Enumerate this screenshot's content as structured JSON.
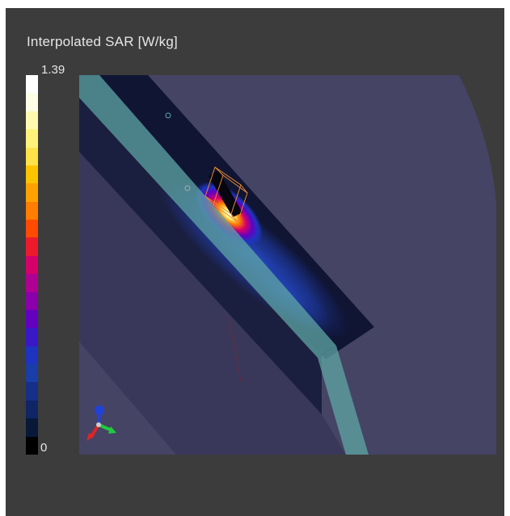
{
  "legend": {
    "title": "Interpolated SAR [W/kg]",
    "max_label": "1.39",
    "min_label": "0",
    "colors_top_to_bottom": [
      "#ffffff",
      "#fffde6",
      "#fffab0",
      "#fff27a",
      "#ffe14a",
      "#ffc400",
      "#ffa200",
      "#ff7d00",
      "#ff4b00",
      "#ee1a2c",
      "#d6006a",
      "#b00094",
      "#8a00aa",
      "#6400c0",
      "#3a18c8",
      "#1e34c0",
      "#1a3ea8",
      "#16308a",
      "#0f2566",
      "#081838",
      "#000000"
    ]
  },
  "viewport": {
    "background_color": "#3c3c3c",
    "ground_plane_color": "#454465",
    "phantom_color": "#101534",
    "strip_color": "#5fa6a4"
  },
  "axes_widget": {
    "icon": "xyz-axes-icon",
    "x_color": "#e02424",
    "y_color": "#1ecc3c",
    "z_color": "#2142d8"
  }
}
